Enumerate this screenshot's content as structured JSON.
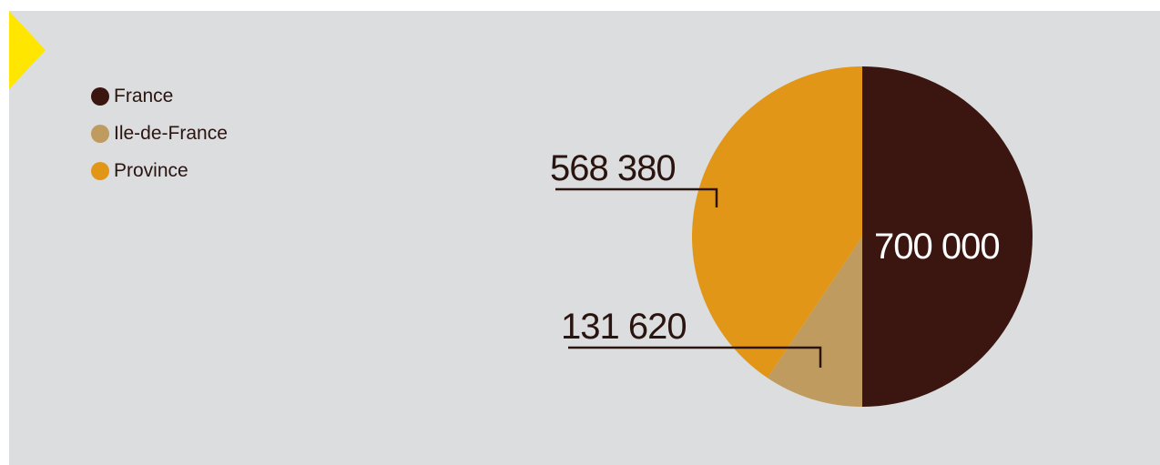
{
  "colors": {
    "france": "#3b150f",
    "ile_de_france": "#bf9b5f",
    "province": "#e29618",
    "panel_bg": "#dcdddf",
    "accent_arrow": "#ffe600"
  },
  "legend": {
    "items": [
      {
        "label": "France",
        "color": "#3b150f"
      },
      {
        "label": "Ile-de-France",
        "color": "#bf9b5f"
      },
      {
        "label": "Province",
        "color": "#e29618"
      }
    ]
  },
  "chart_data": {
    "type": "pie",
    "title": "",
    "slices": [
      {
        "name": "France",
        "value": 700000,
        "label": "700 000",
        "color": "#3b150f"
      },
      {
        "name": "Ile-de-France",
        "value": 131620,
        "label": "131 620",
        "color": "#bf9b5f"
      },
      {
        "name": "Province",
        "value": 568380,
        "label": "568 380",
        "color": "#e29618"
      }
    ],
    "legend_position": "top-left"
  }
}
